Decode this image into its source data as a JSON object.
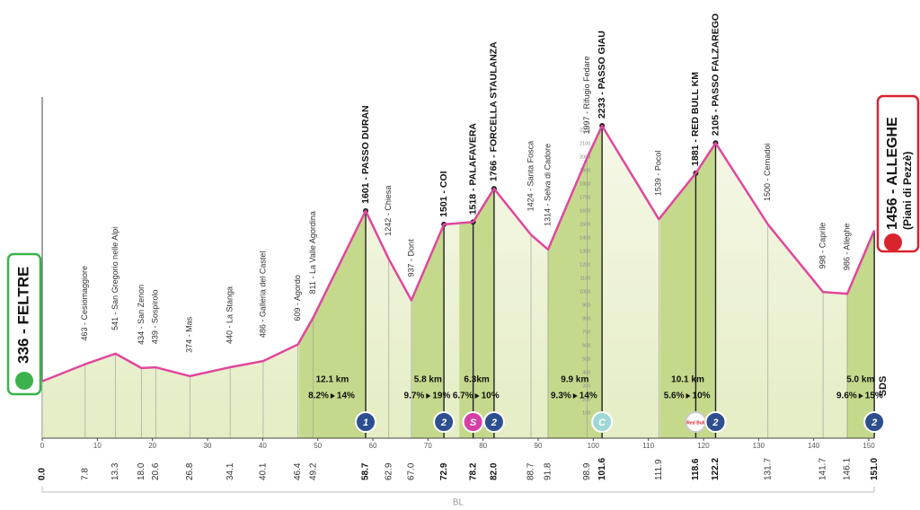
{
  "chart_data": {
    "type": "area",
    "x": [
      0,
      7.8,
      13.3,
      18.0,
      20.6,
      26.8,
      34.1,
      40.1,
      46.4,
      49.2,
      58.7,
      62.9,
      67.0,
      72.9,
      78.2,
      82.0,
      88.7,
      91.8,
      98.9,
      101.6,
      111.9,
      118.6,
      122.2,
      131.7,
      141.7,
      146.1,
      151.0
    ],
    "x_labels": [
      "0.0",
      "7.8",
      "13.3",
      "18.0",
      "20.6",
      "26.8",
      "34.1",
      "40.1",
      "46.4",
      "49.2",
      "58.7",
      "62.9",
      "67.0",
      "72.9",
      "78.2",
      "82.0",
      "88.7",
      "91.8",
      "98.9",
      "101.6",
      "111.9",
      "118.6",
      "122.2",
      "131.7",
      "141.7",
      "146.1",
      "151.0"
    ],
    "values": [
      336,
      463,
      541,
      434,
      439,
      374,
      440,
      486,
      609,
      811,
      1601,
      1242,
      937,
      1501,
      1518,
      1766,
      1424,
      1314,
      1997,
      2233,
      1539,
      1881,
      2105,
      1500,
      998,
      986,
      1456
    ],
    "value_labels": [
      "336 - FELTRE",
      "463 - Cesiomaggiore",
      "541 - San Gregorio nelle Alpi",
      "434 - San Zenon",
      "439 - Sospirolo",
      "374 - Mas",
      "440 - La Stanga",
      "486 - Galleria del Castel",
      "609 - Agordo",
      "811 - La Valle Agordina",
      "1601 - PASSO DURAN",
      "1242 - Chiesa",
      "937 - Dont",
      "1501 - COI",
      "1518 - PALAFAVERA",
      "1766 - FORCELLA STAULANZA",
      "1424 - Santa Fosca",
      "1314 - Selva di Cadore",
      "1997 - Rifugio Fedare",
      "2233 - PASSO GIAU",
      "1539 - Pocol",
      "1881 - RED BULL KM",
      "2105 - PASSO FALZAREGO",
      "1500 - Cernadoi",
      "998 - Caprile",
      "986 - Alleghe",
      "1456 - ALLEGHE"
    ],
    "finish_note": "(Piani di Pezzè)",
    "xlim": [
      0,
      151
    ],
    "xticks": [
      0,
      10,
      20,
      30,
      40,
      50,
      60,
      70,
      80,
      90,
      100,
      110,
      120,
      130,
      140,
      150
    ],
    "ylim": [
      0,
      2400
    ],
    "yticks": [
      100,
      200,
      300,
      400,
      500,
      600,
      700,
      800,
      900,
      1000,
      1100,
      1200,
      1300,
      1400,
      1500,
      1600,
      1700,
      1800,
      1900,
      2000,
      2100,
      2200
    ],
    "line_color": "#e0479e",
    "fill_color": "#eef3d6",
    "climb_color": "#c4d98c",
    "badges": [
      {
        "x": 58.7,
        "label": "1",
        "color": "#2d4f8f",
        "length": 12.1,
        "length_label": "12.1 km",
        "avg": "8.2%",
        "max": "14%"
      },
      {
        "x": 72.9,
        "label": "2",
        "color": "#2d4f8f",
        "length": 5.8,
        "length_label": "5.8 km",
        "avg": "9.7%",
        "max": "19%"
      },
      {
        "x": 78.2,
        "label": "S",
        "color": "#d63fa5"
      },
      {
        "x": 82.0,
        "label": "2",
        "color": "#2d4f8f",
        "length": 6.3,
        "length_label": "6.3km",
        "avg": "6.7%",
        "max": "10%"
      },
      {
        "x": 101.6,
        "label": "C",
        "color": "#9fd6d6",
        "length": 9.9,
        "length_label": "9.9 km",
        "avg": "9.3%",
        "max": "14%"
      },
      {
        "x": 118.6,
        "label": "Red Bull",
        "color": "#ffffff"
      },
      {
        "x": 122.2,
        "label": "2",
        "color": "#2d4f8f",
        "length": 10.1,
        "length_label": "10.1 km",
        "avg": "5.6%",
        "max": "10%"
      },
      {
        "x": 151.0,
        "label": "2",
        "color": "#2d4f8f",
        "length": 5.0,
        "length_label": "5.0 km",
        "avg": "9.6%",
        "max": "15%"
      }
    ],
    "region_label": "BL",
    "logo_text": "SDS"
  }
}
